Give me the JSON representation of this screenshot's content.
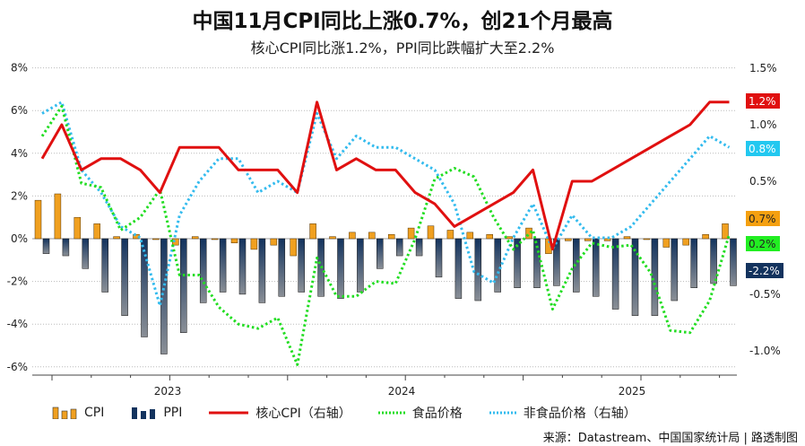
{
  "title": "中国11月CPI同比上涨0.7%，创21个月最高",
  "subtitle": "核心CPI同比涨1.2%，PPI同比跌幅扩大至2.2%",
  "source": "来源：Datastream、中国国家统计局 | 路透制图",
  "colors": {
    "cpi": "#f0a020",
    "ppi": "#13335e",
    "core": "#e01010",
    "food": "#22dd22",
    "nonfood": "#33bbee"
  },
  "chart_data": {
    "type": "bar+line",
    "months": [
      "2022-12",
      "2023-01",
      "2023-02",
      "2023-03",
      "2023-04",
      "2023-05",
      "2023-06",
      "2023-07",
      "2023-08",
      "2023-09",
      "2023-10",
      "2023-11",
      "2023-12",
      "2024-01",
      "2024-02",
      "2024-03",
      "2024-04",
      "2024-05",
      "2024-06",
      "2024-07",
      "2024-08",
      "2024-09",
      "2024-10",
      "2024-11",
      "2024-12",
      "2025-01",
      "2025-02",
      "2025-03",
      "2025-04",
      "2025-05",
      "2025-06",
      "2025-07",
      "2025-08",
      "2025-09",
      "2025-10",
      "2025-11"
    ],
    "x_tick_labels": [
      "2023",
      "2024",
      "2025"
    ],
    "left_axis": {
      "ticks": [
        "8%",
        "6%",
        "4%",
        "2%",
        "0%",
        "-2%",
        "-4%",
        "-6%"
      ],
      "ylim": [
        -6.5,
        8
      ]
    },
    "right_axis": {
      "ticks": [
        "1.5%",
        "1.0%",
        "0.5%",
        "-0.5%",
        "-1.0%"
      ],
      "ylim": [
        -1.1,
        1.5
      ]
    },
    "grid": true,
    "legend_position": "bottom",
    "series": [
      {
        "name": "CPI",
        "type": "bar",
        "axis": "left",
        "values": [
          1.8,
          2.1,
          1.0,
          0.7,
          0.1,
          0.2,
          0.0,
          -0.3,
          0.1,
          0.0,
          -0.2,
          -0.5,
          -0.3,
          -0.8,
          0.7,
          0.1,
          0.3,
          0.3,
          0.2,
          0.5,
          0.6,
          0.4,
          0.3,
          0.2,
          0.1,
          0.5,
          -0.7,
          -0.1,
          -0.1,
          -0.1,
          0.1,
          0.0,
          -0.4,
          -0.3,
          0.2,
          0.7
        ],
        "end_label": "0.7%"
      },
      {
        "name": "PPI",
        "type": "bar",
        "axis": "left",
        "values": [
          -0.7,
          -0.8,
          -1.4,
          -2.5,
          -3.6,
          -4.6,
          -5.4,
          -4.4,
          -3.0,
          -2.5,
          -2.6,
          -3.0,
          -2.7,
          -2.5,
          -2.7,
          -2.8,
          -2.5,
          -1.4,
          -0.8,
          -0.8,
          -1.8,
          -2.8,
          -2.9,
          -2.5,
          -2.3,
          -2.3,
          -2.2,
          -2.5,
          -2.7,
          -3.3,
          -3.6,
          -3.6,
          -2.9,
          -2.3,
          -2.1,
          -2.2
        ],
        "end_label": "-2.2%"
      },
      {
        "name": "核心CPI（右轴）",
        "type": "line",
        "axis": "right",
        "values": [
          0.7,
          1.0,
          0.6,
          0.7,
          0.7,
          0.6,
          0.4,
          0.8,
          0.8,
          0.8,
          0.6,
          0.6,
          0.6,
          0.4,
          1.2,
          0.6,
          0.7,
          0.6,
          0.6,
          0.4,
          0.3,
          0.1,
          0.2,
          0.3,
          0.4,
          0.6,
          -0.1,
          0.5,
          0.5,
          0.6,
          0.7,
          0.8,
          0.9,
          1.0,
          1.2,
          1.2
        ],
        "end_label": "1.2%"
      },
      {
        "name": "食品价格",
        "type": "line",
        "axis": "left",
        "values": [
          4.8,
          6.2,
          2.6,
          2.4,
          0.4,
          1.0,
          2.3,
          -1.7,
          -1.7,
          -3.2,
          -4.0,
          -4.2,
          -3.7,
          -5.9,
          -0.9,
          -2.7,
          -2.7,
          -2.0,
          -2.1,
          0.0,
          2.8,
          3.3,
          2.9,
          1.0,
          -0.5,
          0.4,
          -3.3,
          -1.4,
          -0.2,
          -0.4,
          -0.3,
          -1.6,
          -4.3,
          -4.4,
          -2.9,
          0.2
        ],
        "end_label": "0.2%"
      },
      {
        "name": "非食品价格（右轴）",
        "type": "line",
        "axis": "right",
        "values": [
          1.1,
          1.2,
          0.6,
          0.4,
          0.1,
          0.0,
          -0.6,
          0.2,
          0.5,
          0.7,
          0.7,
          0.4,
          0.5,
          0.4,
          1.1,
          0.7,
          0.9,
          0.8,
          0.8,
          0.7,
          0.6,
          0.3,
          -0.3,
          -0.4,
          0.0,
          0.3,
          -0.1,
          0.2,
          0.0,
          0.0,
          0.1,
          0.3,
          0.5,
          0.7,
          0.9,
          0.8
        ],
        "end_label": "0.8%"
      }
    ]
  }
}
